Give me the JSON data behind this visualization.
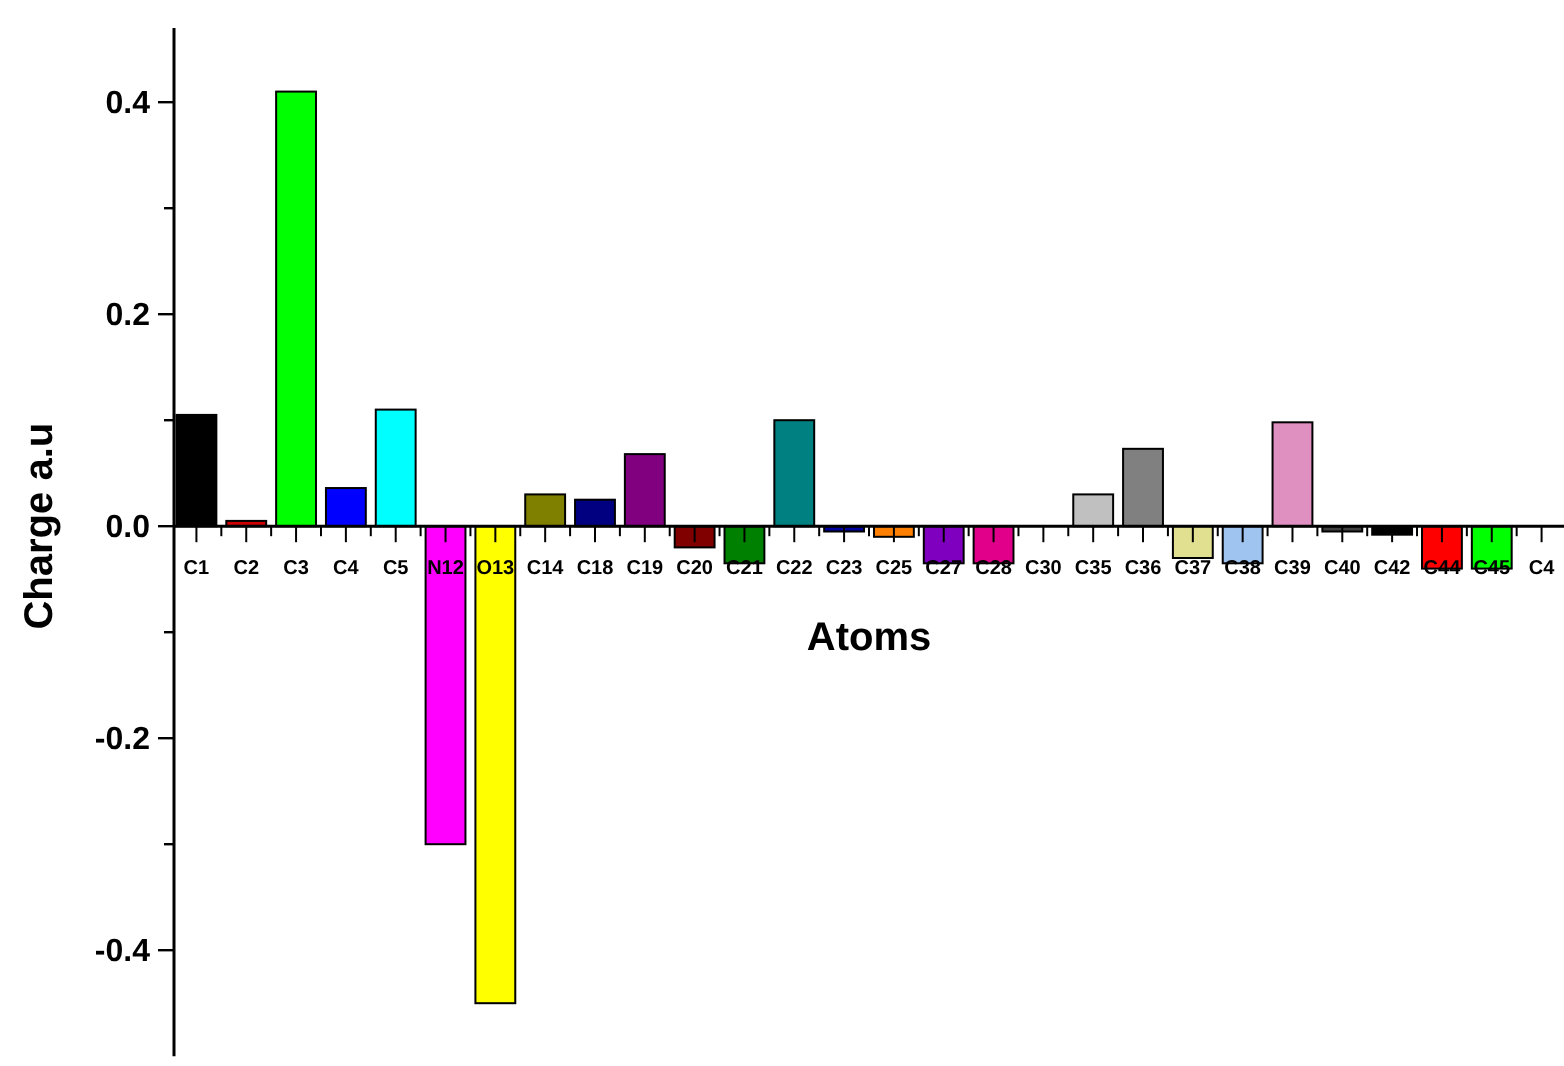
{
  "chart_data": {
    "type": "bar",
    "xlabel": "Atoms",
    "ylabel": "Charge a.u",
    "categories": [
      "C1",
      "C2",
      "C3",
      "C4",
      "C5",
      "N12",
      "O13",
      "C14",
      "C18",
      "C19",
      "C20",
      "C21",
      "C22",
      "C23",
      "C25",
      "C27",
      "C28",
      "C30",
      "C35",
      "C36",
      "C37",
      "C38",
      "C39",
      "C40",
      "C42",
      "C44",
      "C45",
      "C4"
    ],
    "values": [
      0.105,
      0.005,
      0.41,
      0.036,
      0.11,
      -0.3,
      -0.45,
      0.03,
      0.025,
      0.068,
      -0.02,
      -0.035,
      0.1,
      -0.005,
      -0.01,
      -0.035,
      -0.035,
      0,
      0.03,
      0.073,
      -0.03,
      -0.035,
      0.098,
      -0.005,
      -0.008,
      -0.04,
      -0.04,
      null
    ],
    "colors": [
      "#000000",
      "#cc0000",
      "#00ff00",
      "#0000ff",
      "#00ffff",
      "#ff00ff",
      "#ffff00",
      "#808000",
      "#000080",
      "#800080",
      "#800000",
      "#008000",
      "#008080",
      "#0000a0",
      "#ff8000",
      "#8000c0",
      "#e0008a",
      "#808080",
      "#c0c0c0",
      "#808080",
      "#e0e090",
      "#a0c4f0",
      "#e090c0",
      "#404040",
      "#000000",
      "#ff0000",
      "#00ff00",
      null
    ],
    "ylim": [
      -0.5,
      0.47
    ],
    "yticks": [
      {
        "value": -0.4,
        "label": "-0.4"
      },
      {
        "value": -0.3,
        "label": null
      },
      {
        "value": -0.2,
        "label": "-0.2"
      },
      {
        "value": -0.1,
        "label": null
      },
      {
        "value": 0,
        "label": "0.0"
      },
      {
        "value": 0.1,
        "label": null
      },
      {
        "value": 0.2,
        "label": "0.2"
      },
      {
        "value": 0.3,
        "label": null
      },
      {
        "value": 0.4,
        "label": "0.4"
      }
    ],
    "grid": false
  }
}
